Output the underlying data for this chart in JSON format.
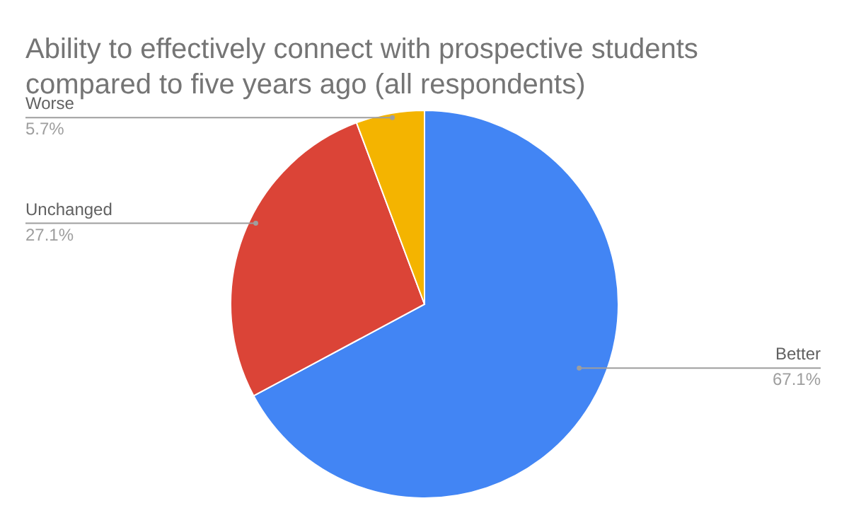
{
  "chart_data": {
    "type": "pie",
    "title": "Ability to effectively connect with prospective students compared to five years ago (all respondents)",
    "categories": [
      "Better",
      "Unchanged",
      "Worse"
    ],
    "values": [
      67.1,
      27.1,
      5.7
    ],
    "value_labels": [
      "67.1%",
      "27.1%",
      "5.7%"
    ],
    "colors": [
      "#4285f4",
      "#db4437",
      "#f4b400"
    ],
    "legend": false
  }
}
